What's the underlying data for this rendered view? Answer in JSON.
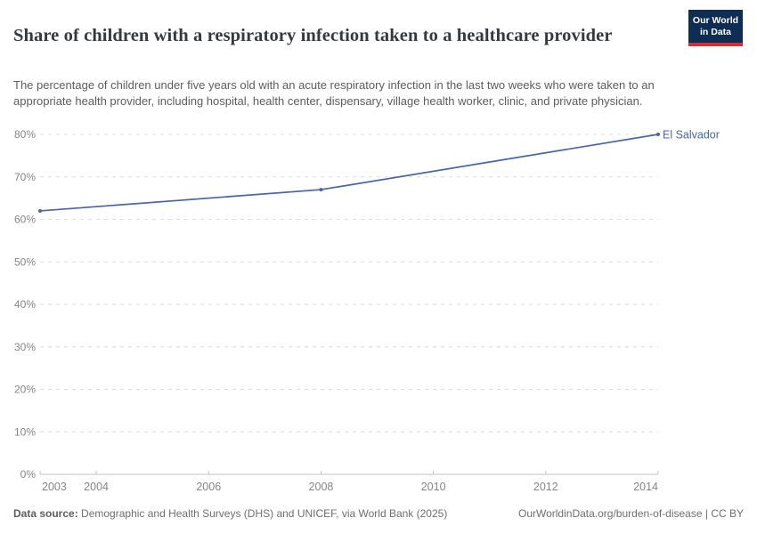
{
  "header": {
    "title": "Share of children with a respiratory infection taken to a healthcare provider",
    "subtitle": "The percentage of children under five years old with an acute respiratory infection in the last two weeks who were taken to an appropriate health provider, including hospital, health center, dispensary, village health worker, clinic, and private physician.",
    "logo": {
      "line1": "Our World",
      "line2": "in Data",
      "bg_color": "#0f2d52",
      "accent_color": "#dc2a30"
    }
  },
  "chart_data": {
    "type": "line",
    "title": "Share of children with a respiratory infection taken to a healthcare provider",
    "xlabel": "",
    "ylabel": "",
    "xlim": [
      2003,
      2014
    ],
    "ylim": [
      0,
      80
    ],
    "grid": "horizontal-dashed",
    "legend_position": "end-of-line-label",
    "x_tick_values": [
      2003,
      2004,
      2006,
      2008,
      2010,
      2012,
      2014
    ],
    "x_tick_labels": [
      "2003",
      "2004",
      "2006",
      "2008",
      "2010",
      "2012",
      "2014"
    ],
    "y_tick_values": [
      0,
      10,
      20,
      30,
      40,
      50,
      60,
      70,
      80
    ],
    "y_tick_suffix": "%",
    "series": [
      {
        "name": "El Salvador",
        "color": "#4664aa",
        "points": [
          {
            "year": 2003,
            "value": 62
          },
          {
            "year": 2008,
            "value": 67
          },
          {
            "year": 2014,
            "value": 80
          }
        ]
      }
    ],
    "colors": {
      "gridline": "#dcdcdc",
      "axis": "#c2c2c2",
      "tick_label": "#858585"
    }
  },
  "footer": {
    "source_label": "Data source:",
    "source_text": " Demographic and Health Surveys (DHS) and UNICEF, via World Bank (2025)",
    "link_text": "OurWorldinData.org/burden-of-disease | CC BY"
  }
}
